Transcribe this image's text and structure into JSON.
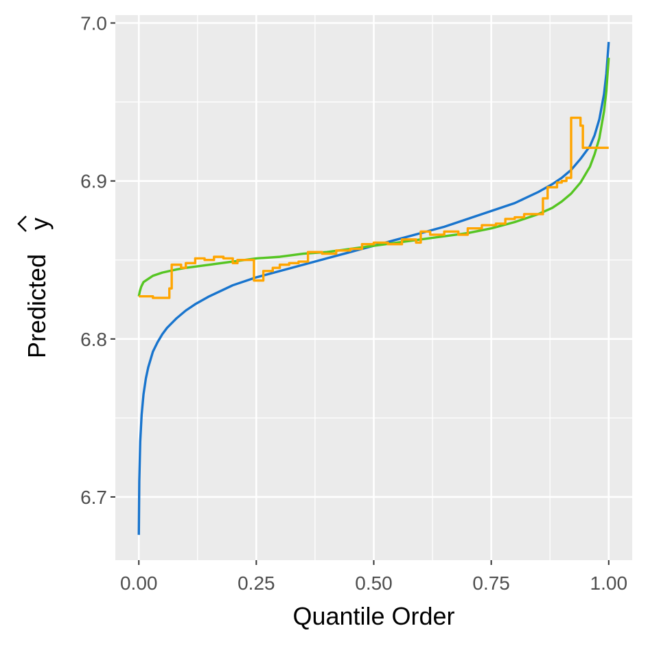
{
  "chart_data": {
    "type": "line",
    "title": "",
    "xlabel": "Quantile Order",
    "ylabel": "Predicted",
    "ylabel_hat_symbol": "y",
    "xlim": [
      -0.05,
      1.05
    ],
    "ylim": [
      6.66,
      7.005
    ],
    "x_ticks": [
      0.0,
      0.25,
      0.5,
      0.75,
      1.0
    ],
    "x_tick_labels": [
      "0.00",
      "0.25",
      "0.50",
      "0.75",
      "1.00"
    ],
    "y_ticks": [
      6.7,
      6.8,
      6.9,
      7.0
    ],
    "y_tick_labels": [
      "6.7",
      "6.8",
      "6.9",
      "7.0"
    ],
    "y_minor_ticks": [
      6.75,
      6.85,
      6.95
    ],
    "x_minor_ticks": [
      0.125,
      0.375,
      0.625,
      0.875
    ],
    "grid": true,
    "background": "#ebebeb",
    "series": [
      {
        "color": "#1874cd",
        "x": [
          0.0,
          0.001,
          0.003,
          0.006,
          0.01,
          0.015,
          0.02,
          0.03,
          0.04,
          0.05,
          0.06,
          0.08,
          0.1,
          0.12,
          0.15,
          0.2,
          0.25,
          0.3,
          0.35,
          0.4,
          0.45,
          0.5,
          0.55,
          0.6,
          0.65,
          0.7,
          0.75,
          0.8,
          0.85,
          0.88,
          0.9,
          0.92,
          0.94,
          0.96,
          0.97,
          0.98,
          0.99,
          0.995,
          1.0
        ],
        "y": [
          6.676,
          6.71,
          6.735,
          6.752,
          6.765,
          6.775,
          6.782,
          6.792,
          6.798,
          6.803,
          6.807,
          6.813,
          6.818,
          6.822,
          6.827,
          6.834,
          6.839,
          6.843,
          6.847,
          6.851,
          6.855,
          6.859,
          6.863,
          6.867,
          6.871,
          6.876,
          6.881,
          6.886,
          6.893,
          6.898,
          6.902,
          6.907,
          6.914,
          6.922,
          6.929,
          6.939,
          6.955,
          6.968,
          6.988
        ]
      },
      {
        "color": "#55c522",
        "x": [
          0.0,
          0.002,
          0.005,
          0.01,
          0.02,
          0.03,
          0.05,
          0.08,
          0.1,
          0.15,
          0.2,
          0.25,
          0.3,
          0.35,
          0.4,
          0.45,
          0.5,
          0.55,
          0.6,
          0.65,
          0.7,
          0.75,
          0.8,
          0.85,
          0.88,
          0.9,
          0.92,
          0.94,
          0.96,
          0.97,
          0.98,
          0.99,
          0.995,
          1.0
        ],
        "y": [
          6.827,
          6.83,
          6.833,
          6.836,
          6.838,
          6.84,
          6.842,
          6.844,
          6.845,
          6.847,
          6.849,
          6.851,
          6.852,
          6.854,
          6.855,
          6.857,
          6.859,
          6.861,
          6.863,
          6.865,
          6.867,
          6.87,
          6.874,
          6.879,
          6.883,
          6.887,
          6.892,
          6.899,
          6.909,
          6.917,
          6.927,
          6.944,
          6.957,
          6.978
        ]
      },
      {
        "color": "#ffa500",
        "x": [
          0.0,
          0.03,
          0.03,
          0.065,
          0.065,
          0.07,
          0.07,
          0.09,
          0.09,
          0.1,
          0.1,
          0.12,
          0.12,
          0.14,
          0.14,
          0.16,
          0.16,
          0.18,
          0.18,
          0.2,
          0.2,
          0.21,
          0.21,
          0.245,
          0.245,
          0.265,
          0.265,
          0.285,
          0.285,
          0.3,
          0.3,
          0.32,
          0.32,
          0.34,
          0.34,
          0.36,
          0.36,
          0.39,
          0.39,
          0.42,
          0.42,
          0.45,
          0.45,
          0.475,
          0.475,
          0.5,
          0.5,
          0.53,
          0.53,
          0.56,
          0.56,
          0.59,
          0.59,
          0.6,
          0.6,
          0.62,
          0.62,
          0.65,
          0.65,
          0.68,
          0.68,
          0.7,
          0.7,
          0.73,
          0.73,
          0.76,
          0.76,
          0.78,
          0.78,
          0.8,
          0.8,
          0.82,
          0.82,
          0.86,
          0.86,
          0.87,
          0.87,
          0.89,
          0.89,
          0.9,
          0.9,
          0.91,
          0.91,
          0.92,
          0.92,
          0.94,
          0.94,
          0.945,
          0.945,
          0.97,
          0.97,
          1.0
        ],
        "y": [
          6.827,
          6.827,
          6.826,
          6.826,
          6.832,
          6.832,
          6.847,
          6.847,
          6.845,
          6.845,
          6.848,
          6.848,
          6.851,
          6.851,
          6.85,
          6.85,
          6.852,
          6.852,
          6.851,
          6.851,
          6.848,
          6.848,
          6.85,
          6.85,
          6.837,
          6.837,
          6.843,
          6.843,
          6.845,
          6.845,
          6.847,
          6.847,
          6.848,
          6.848,
          6.849,
          6.849,
          6.855,
          6.855,
          6.854,
          6.854,
          6.856,
          6.856,
          6.857,
          6.857,
          6.86,
          6.86,
          6.861,
          6.861,
          6.86,
          6.86,
          6.863,
          6.863,
          6.861,
          6.861,
          6.868,
          6.868,
          6.866,
          6.866,
          6.868,
          6.868,
          6.866,
          6.866,
          6.87,
          6.87,
          6.872,
          6.872,
          6.873,
          6.873,
          6.876,
          6.876,
          6.877,
          6.877,
          6.879,
          6.879,
          6.889,
          6.889,
          6.896,
          6.896,
          6.899,
          6.899,
          6.9,
          6.9,
          6.902,
          6.902,
          6.94,
          6.94,
          6.935,
          6.935,
          6.921,
          6.921,
          6.921,
          6.921
        ]
      }
    ]
  }
}
